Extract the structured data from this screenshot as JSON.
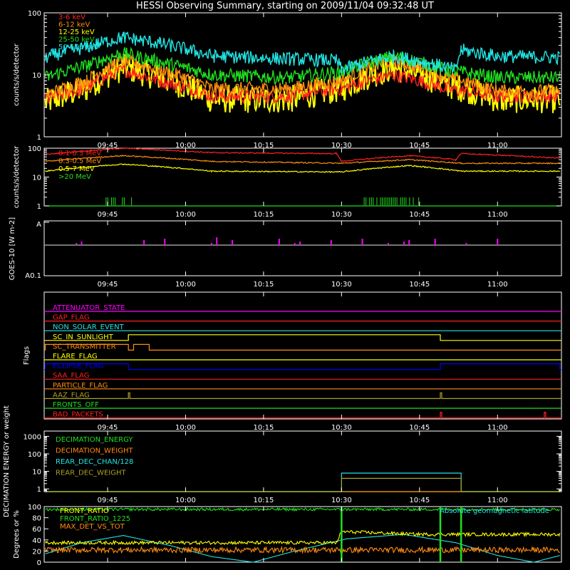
{
  "title": "HESSI Observing Summary, starting on 2009/11/04 09:32:48 UT",
  "colors": {
    "red": "#ff2020",
    "orange": "#ff8c10",
    "yellow": "#ffff00",
    "green": "#1fe01f",
    "cyan": "#22e4e4",
    "magenta": "#ff00ff",
    "blue": "#0000ff",
    "olive": "#aaa020",
    "axis": "#ffffff",
    "grey": "#9a9a9a"
  },
  "time_ticks": [
    "09:45",
    "10:00",
    "10:15",
    "10:30",
    "10:45",
    "11:00"
  ],
  "chart_data": [
    {
      "id": "lightcurves",
      "type": "line",
      "ylabel": "counts/s/detector",
      "yscale": "log",
      "ylim": [
        1,
        100
      ],
      "y_ticks": [
        "100",
        "10",
        "1"
      ],
      "legend": [
        "3-6 keV",
        "6-12 keV",
        "12-25 keV",
        "25-50 keV",
        "50-100 keV"
      ],
      "series": [
        {
          "name": "3-6 keV",
          "color": "#ff2020",
          "points": [
            [
              "09:33",
              4
            ],
            [
              "09:41",
              6
            ],
            [
              "09:48",
              12
            ],
            [
              "09:55",
              8
            ],
            [
              "10:05",
              4.5
            ],
            [
              "10:20",
              4.5
            ],
            [
              "10:30",
              6
            ],
            [
              "10:40",
              10
            ],
            [
              "10:50",
              6
            ],
            [
              "11:00",
              4.5
            ],
            [
              "11:12",
              4.5
            ]
          ]
        },
        {
          "name": "6-12 keV",
          "color": "#ff8c10",
          "points": [
            [
              "09:33",
              4.5
            ],
            [
              "09:41",
              8
            ],
            [
              "09:48",
              17
            ],
            [
              "09:55",
              12
            ],
            [
              "10:05",
              6
            ],
            [
              "10:20",
              6
            ],
            [
              "10:30",
              8
            ],
            [
              "10:40",
              17
            ],
            [
              "10:50",
              9
            ],
            [
              "11:00",
              5.5
            ],
            [
              "11:12",
              5.5
            ]
          ]
        },
        {
          "name": "12-25 keV",
          "color": "#ffff00",
          "points": [
            [
              "09:33",
              3.5
            ],
            [
              "09:41",
              6
            ],
            [
              "09:48",
              13
            ],
            [
              "09:55",
              9
            ],
            [
              "10:05",
              4
            ],
            [
              "10:20",
              4
            ],
            [
              "10:30",
              6
            ],
            [
              "10:40",
              13
            ],
            [
              "10:50",
              7
            ],
            [
              "11:00",
              4
            ],
            [
              "11:12",
              4
            ]
          ]
        },
        {
          "name": "25-50 keV",
          "color": "#1fe01f",
          "points": [
            [
              "09:33",
              9
            ],
            [
              "09:41",
              14
            ],
            [
              "09:48",
              22
            ],
            [
              "09:55",
              16
            ],
            [
              "10:05",
              10
            ],
            [
              "10:20",
              9
            ],
            [
              "10:30",
              11
            ],
            [
              "10:40",
              20
            ],
            [
              "10:50",
              12
            ],
            [
              "11:00",
              9
            ],
            [
              "11:12",
              9
            ]
          ]
        },
        {
          "name": "50-100 keV",
          "color": "#22e4e4",
          "points": [
            [
              "09:33",
              19
            ],
            [
              "09:41",
              28
            ],
            [
              "09:48",
              40
            ],
            [
              "09:55",
              32
            ],
            [
              "10:05",
              20
            ],
            [
              "10:20",
              18
            ],
            [
              "10:29",
              17
            ],
            [
              "10:30",
              12
            ],
            [
              "10:40",
              20
            ],
            [
              "10:52",
              12
            ],
            [
              "10:53",
              25
            ],
            [
              "11:00",
              20
            ],
            [
              "11:12",
              19
            ]
          ]
        }
      ]
    },
    {
      "id": "particles",
      "type": "line",
      "ylabel": "counts/s/detector",
      "yscale": "log",
      "ylim": [
        1,
        100
      ],
      "y_ticks": [
        "100",
        "10",
        "1"
      ],
      "legend": [
        "0.1-0.3 MeV",
        "0.3-0.5 MeV",
        "0.5-7 MeV",
        ">20 MeV"
      ],
      "series": [
        {
          "name": "0.1-0.3 MeV",
          "color": "#ff2020",
          "points": [
            [
              "09:33",
              60
            ],
            [
              "09:48",
              100
            ],
            [
              "10:05",
              70
            ],
            [
              "10:29",
              65
            ],
            [
              "10:30",
              35
            ],
            [
              "10:43",
              55
            ],
            [
              "10:52",
              40
            ],
            [
              "10:53",
              65
            ],
            [
              "11:12",
              45
            ]
          ]
        },
        {
          "name": "0.3-0.5 MeV",
          "color": "#ff8c10",
          "points": [
            [
              "09:33",
              35
            ],
            [
              "09:48",
              55
            ],
            [
              "10:05",
              35
            ],
            [
              "10:30",
              30
            ],
            [
              "10:43",
              40
            ],
            [
              "10:53",
              30
            ],
            [
              "11:12",
              30
            ]
          ]
        },
        {
          "name": "0.5-7 MeV",
          "color": "#ffff00",
          "points": [
            [
              "09:33",
              16
            ],
            [
              "09:48",
              28
            ],
            [
              "10:05",
              16
            ],
            [
              "10:30",
              15
            ],
            [
              "10:43",
              25
            ],
            [
              "10:53",
              16
            ],
            [
              "11:12",
              16
            ]
          ]
        },
        {
          "name": ">20 MeV",
          "color": "#1fe01f",
          "points": [
            [
              "09:33",
              1
            ],
            [
              "11:12",
              1
            ]
          ]
        }
      ],
      "spikes": {
        "color": "#1fe01f",
        "ranges": [
          [
            "09:44",
            "09:50"
          ],
          [
            "10:34",
            "10:45"
          ]
        ]
      }
    },
    {
      "id": "goes",
      "type": "line",
      "ylabel": "GOES-10 [W m-2]",
      "y_ticks": [
        "A",
        "A0.1"
      ],
      "baseline_color": "#9a9a9a",
      "spike_color": "#ff00ff",
      "spikes": [
        "09:39",
        "09:40",
        "09:52",
        "09:56",
        "10:05",
        "10:06",
        "10:09",
        "10:18",
        "10:21",
        "10:22",
        "10:28",
        "10:34",
        "10:39",
        "10:42",
        "10:43",
        "10:48",
        "10:54",
        "11:00"
      ]
    },
    {
      "id": "flags",
      "type": "line",
      "ylabel": "Flags",
      "flags": [
        {
          "name": "ATTENUATOR_STATE",
          "color": "#ff00ff",
          "high": []
        },
        {
          "name": "GAP_FLAG",
          "color": "#ff2020",
          "high": []
        },
        {
          "name": "NON_SOLAR_EVENT",
          "color": "#22e4e4",
          "high": []
        },
        {
          "name": "SC_IN_SUNLIGHT",
          "color": "#ffff00",
          "high": [
            [
              "09:49",
              "10:49"
            ]
          ]
        },
        {
          "name": "SC_TRANSMITTER",
          "color": "#ff8c10",
          "high": [
            [
              "09:33",
              "09:49"
            ],
            [
              "09:50",
              "09:53"
            ]
          ]
        },
        {
          "name": "FLARE_FLAG",
          "color": "#ffff00",
          "high": []
        },
        {
          "name": "ECLIPSE_FLAG",
          "color": "#0000ff",
          "high": [
            [
              "09:33",
              "09:49"
            ],
            [
              "10:49",
              "11:12"
            ]
          ]
        },
        {
          "name": "SAA_FLAG",
          "color": "#ff2020",
          "high": []
        },
        {
          "name": "PARTICLE_FLAG",
          "color": "#ff8c10",
          "high": []
        },
        {
          "name": "AAZ_FLAG",
          "color": "#aaa020",
          "high": [
            [
              "09:49",
              "09:49"
            ],
            [
              "10:49",
              "10:49"
            ]
          ]
        },
        {
          "name": "FRONTS_OFF",
          "color": "#1fe01f",
          "high": []
        },
        {
          "name": "BAD_PACKETS",
          "color": "#ff2020",
          "high": [
            [
              "10:49",
              "10:49"
            ],
            [
              "11:09",
              "11:09"
            ]
          ]
        }
      ]
    },
    {
      "id": "decimation",
      "type": "line",
      "ylabel": "DECIMATION ENERGY or weight",
      "yscale": "log",
      "ylim": [
        0.7,
        2000
      ],
      "y_ticks": [
        "1000",
        "100",
        "10",
        "1"
      ],
      "legend": [
        "DECIMATION_ENERGY",
        "DECIMATION_WEIGHT",
        "REAR_DEC_CHAN/128",
        "REAR_DEC_WEIGHT"
      ],
      "series": [
        {
          "name": "DECIMATION_ENERGY",
          "color": "#1fe01f",
          "points": [
            [
              "09:33",
              0.7
            ],
            [
              "11:12",
              0.7
            ]
          ]
        },
        {
          "name": "DECIMATION_WEIGHT",
          "color": "#ff8c10",
          "points": [
            [
              "09:33",
              0.7
            ],
            [
              "11:12",
              0.7
            ]
          ]
        },
        {
          "name": "REAR_DEC_CHAN/128",
          "color": "#22e4e4",
          "points": [
            [
              "09:33",
              0.7
            ],
            [
              "10:30",
              0.7
            ],
            [
              "10:30",
              8
            ],
            [
              "10:53",
              8
            ],
            [
              "10:53",
              0.7
            ],
            [
              "11:12",
              0.7
            ]
          ]
        },
        {
          "name": "REAR_DEC_WEIGHT",
          "color": "#aaa020",
          "points": [
            [
              "09:33",
              0.7
            ],
            [
              "10:30",
              0.7
            ],
            [
              "10:30",
              4
            ],
            [
              "10:53",
              4
            ],
            [
              "10:53",
              0.7
            ],
            [
              "11:12",
              0.7
            ]
          ]
        }
      ]
    },
    {
      "id": "ratios",
      "type": "line",
      "ylabel": "Degrees or %",
      "ylim": [
        0,
        100
      ],
      "y_ticks": [
        "100",
        "80",
        "60",
        "40",
        "20",
        "0"
      ],
      "legend": [
        "FRONT_RATIO",
        "FRONT_RATIO_1225",
        "MAX_DET_VS_TOT"
      ],
      "legend_right": "Absolute geomagnetic latitude",
      "series": [
        {
          "name": "FRONT_RATIO",
          "color": "#ffff00",
          "points": [
            [
              "09:33",
              35
            ],
            [
              "10:29",
              35
            ],
            [
              "10:30",
              55
            ],
            [
              "10:45",
              50
            ],
            [
              "11:12",
              50
            ]
          ]
        },
        {
          "name": "FRONT_RATIO_1225",
          "color": "#1fe01f",
          "points": [
            [
              "09:33",
              95
            ],
            [
              "11:12",
              95
            ]
          ]
        },
        {
          "name": "MAX_DET_VS_TOT",
          "color": "#ff8c10",
          "points": [
            [
              "09:33",
              22
            ],
            [
              "11:12",
              22
            ]
          ]
        },
        {
          "name": "Absolute geomagnetic latitude",
          "color": "#22e4e4",
          "points": [
            [
              "09:33",
              15
            ],
            [
              "09:40",
              35
            ],
            [
              "09:48",
              48
            ],
            [
              "09:57",
              30
            ],
            [
              "10:05",
              10
            ],
            [
              "10:13",
              0
            ],
            [
              "10:21",
              20
            ],
            [
              "10:31",
              42
            ],
            [
              "10:42",
              50
            ],
            [
              "10:52",
              35
            ],
            [
              "11:00",
              12
            ],
            [
              "11:07",
              0
            ],
            [
              "11:12",
              12
            ]
          ]
        }
      ],
      "vlines": {
        "color": "#1fe01f",
        "at": [
          "10:30",
          "10:49",
          "10:53"
        ]
      }
    }
  ]
}
